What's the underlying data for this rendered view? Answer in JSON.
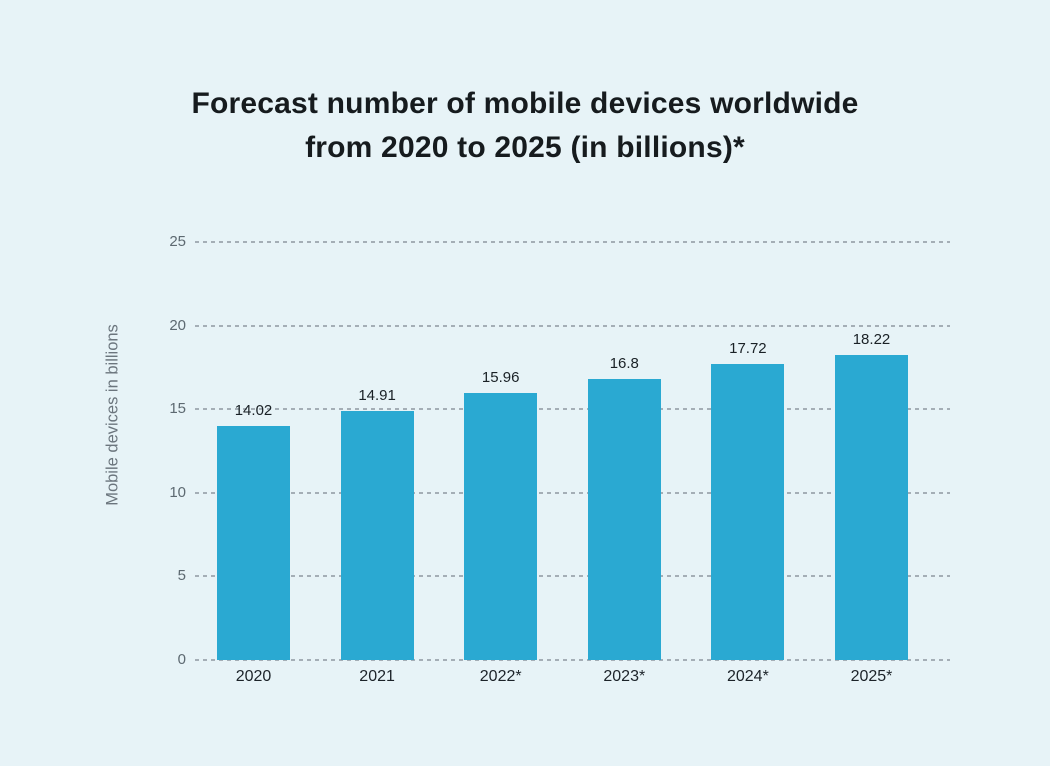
{
  "chart_data": {
    "type": "bar",
    "title": "Forecast number of mobile devices worldwide from 2020 to 2025 (in billions)*",
    "title_lines": [
      "Forecast number of mobile devices worldwide",
      "from 2020 to 2025 (in billions)*"
    ],
    "ylabel": "Mobile devices in billions",
    "xlabel": "",
    "categories": [
      "2020",
      "2021",
      "2022*",
      "2023*",
      "2024*",
      "2025*"
    ],
    "values": [
      14.02,
      14.91,
      15.96,
      16.8,
      17.72,
      18.22
    ],
    "value_labels": [
      "14.02",
      "14.91",
      "15.96",
      "16.8",
      "17.72",
      "18.22"
    ],
    "yticks": [
      0,
      5,
      10,
      15,
      20,
      25
    ],
    "ylim": [
      0,
      25
    ],
    "grid": "horizontal-dashed",
    "legend": "none",
    "colors": {
      "bar": "#2aa9d2",
      "background": "#e7f3f7",
      "gridline": "#a4aeb6",
      "tick_label": "#5d6971",
      "axis_title": "#6b757d",
      "title_text": "#161b1e",
      "value_label": "#1a2126",
      "category_label": "#1c2329"
    }
  }
}
